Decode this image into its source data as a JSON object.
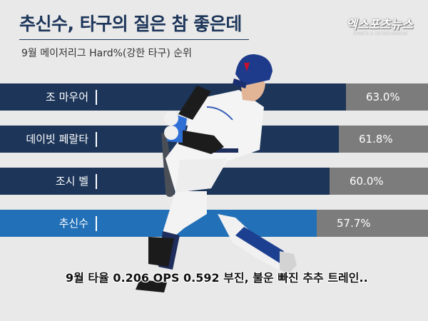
{
  "headline": "추신수, 타구의 질은 참 좋은데",
  "logo": {
    "main": "엑스포츠뉴스",
    "sub": "SPORTS & ENTERTAINMENT"
  },
  "caption": "9월 타율 0.206 OPS 0.592 부진, 불운 빠진 추추 트레인..",
  "chart_data": {
    "type": "bar",
    "orientation": "horizontal",
    "title": "9월 메이저리그 Hard%(강한 타구) 순위",
    "categories": [
      "조 마우어",
      "데이빗 페랄타",
      "조시 벨",
      "추신수"
    ],
    "values": [
      63.0,
      61.8,
      60.0,
      57.7
    ],
    "value_labels": [
      "63.0%",
      "61.8%",
      "60.0%",
      "57.7%"
    ],
    "unit": "%",
    "xlim": [
      0,
      78
    ],
    "colors": {
      "default": "#1c3559",
      "highlight": "#2270b7",
      "highlight_category": "추신수",
      "remainder": "#7c7c7c"
    }
  }
}
